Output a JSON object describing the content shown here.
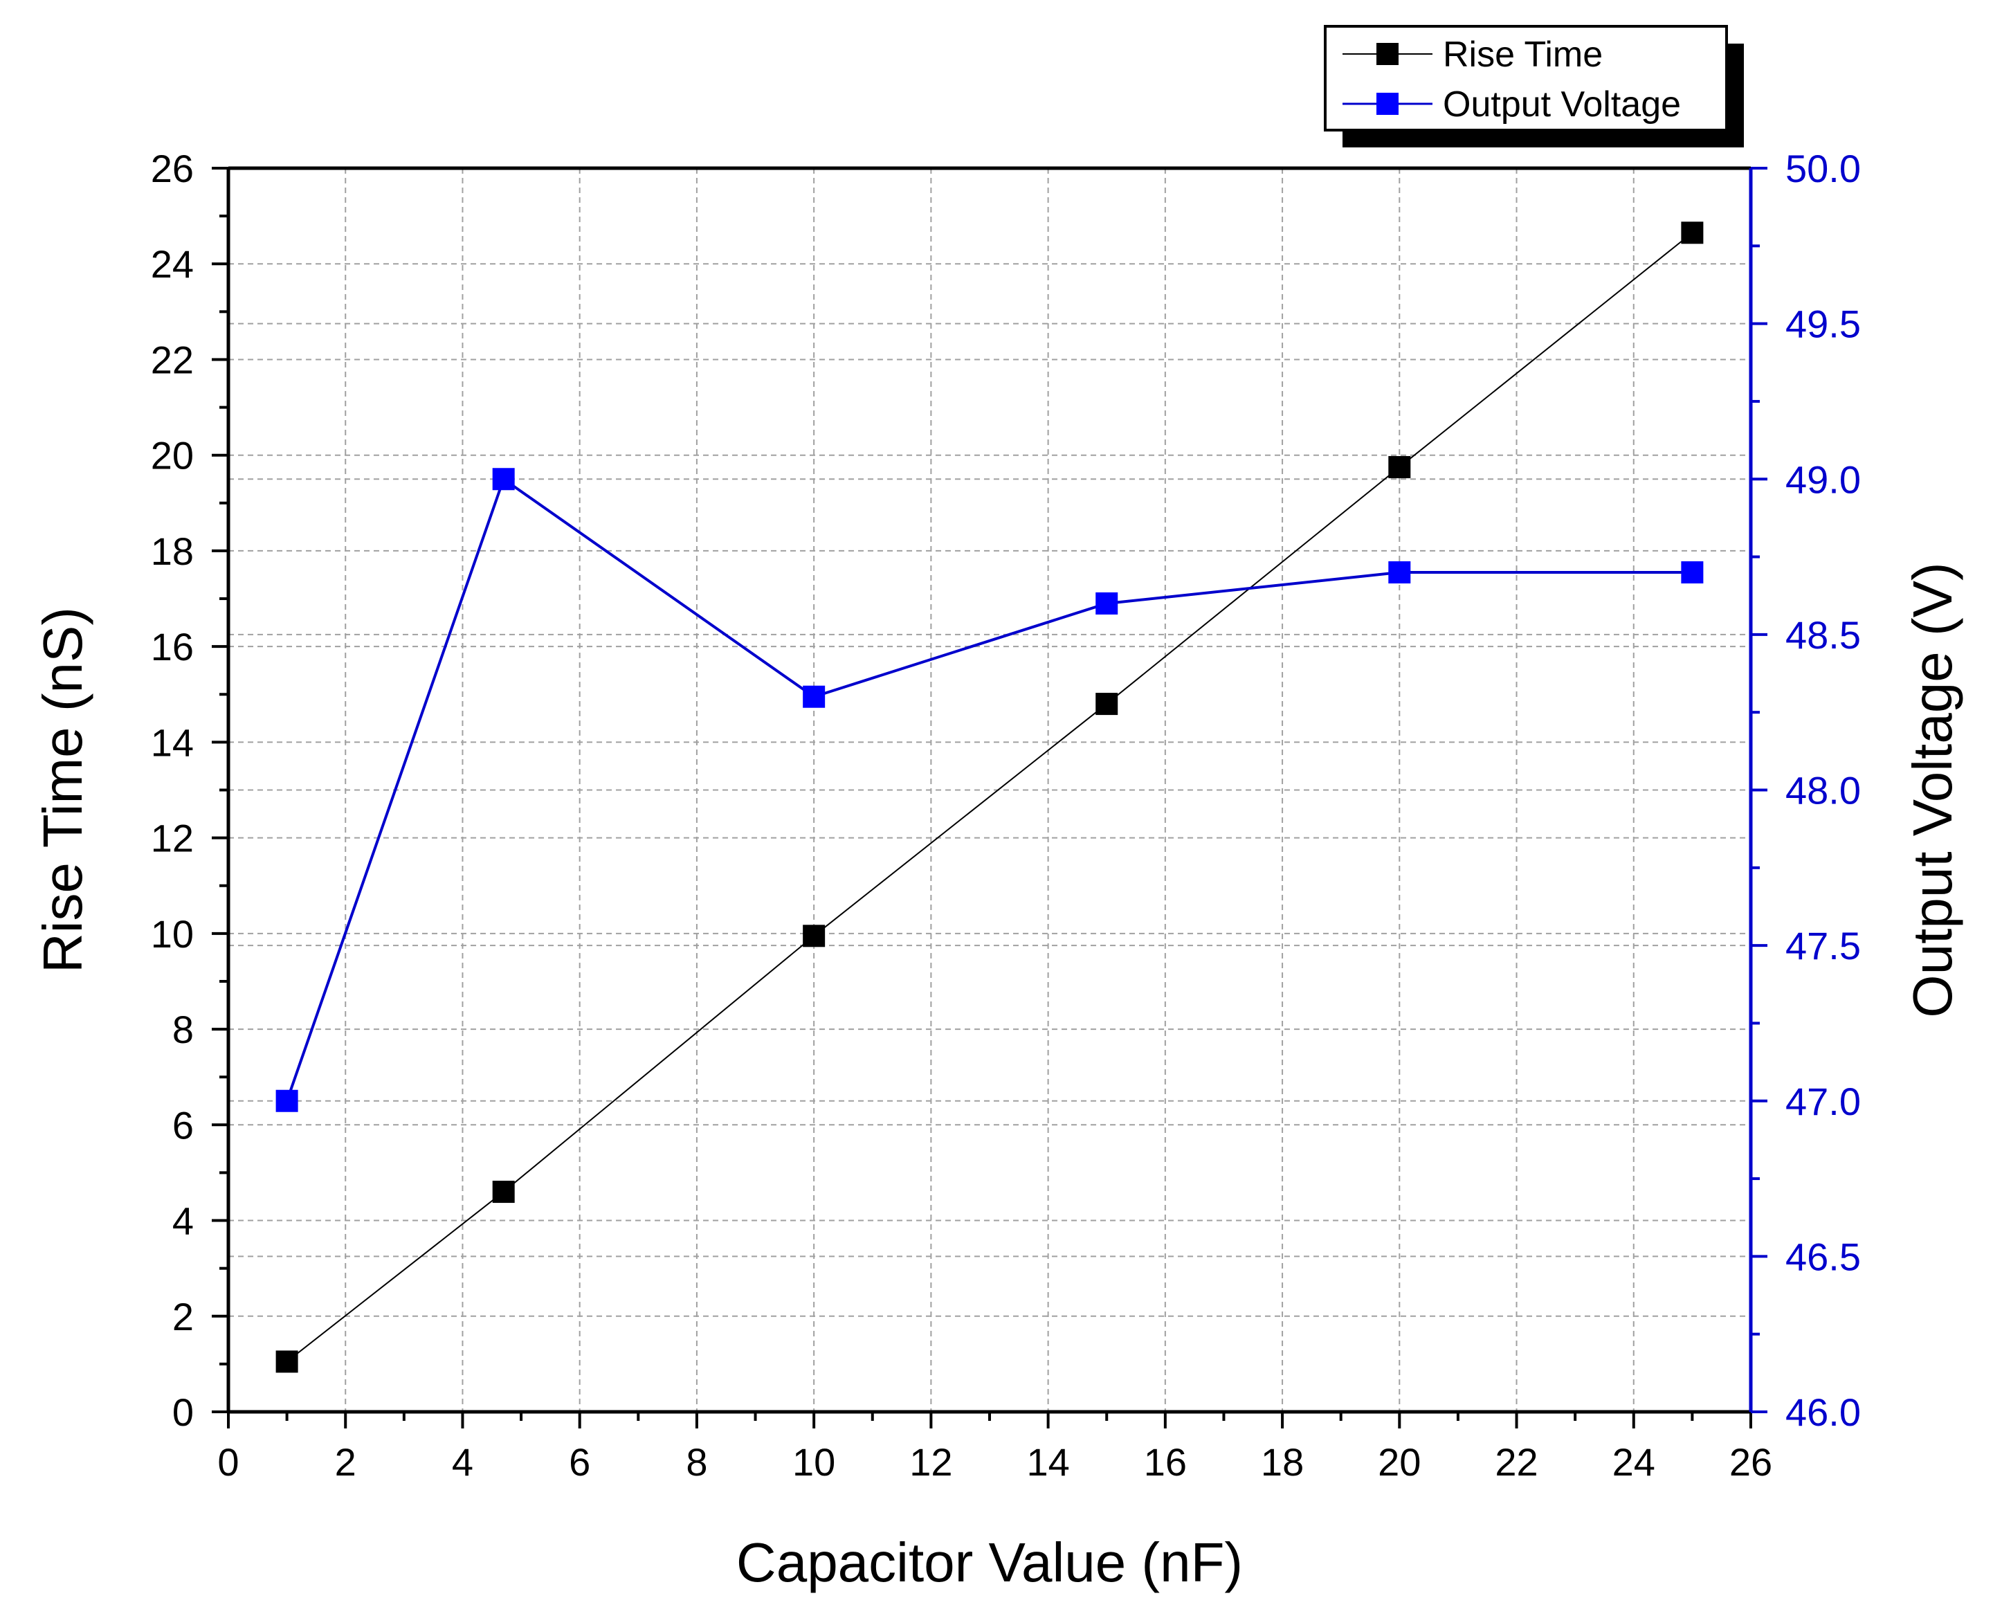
{
  "chart_data": {
    "type": "line",
    "title": "",
    "xlabel": "Capacitor Value (nF)",
    "ylabel": "Rise Time (nS)",
    "y2label": "Output Voltage (V)",
    "xlim": [
      0,
      26
    ],
    "ylim": [
      0,
      26
    ],
    "y2lim": [
      46.0,
      50.0
    ],
    "x_ticks": [
      "0",
      "2",
      "4",
      "6",
      "8",
      "10",
      "12",
      "14",
      "16",
      "18",
      "20",
      "22",
      "24",
      "26"
    ],
    "y_ticks": [
      "0",
      "2",
      "4",
      "6",
      "8",
      "10",
      "12",
      "14",
      "16",
      "18",
      "20",
      "22",
      "24",
      "26"
    ],
    "y2_ticks": [
      "46.0",
      "46.5",
      "47.0",
      "47.5",
      "48.0",
      "48.5",
      "49.0",
      "49.5",
      "50.0"
    ],
    "grid": true,
    "legend_position": "top-right",
    "colors": {
      "rise_time": "#000000",
      "output_voltage": "#0000cc",
      "marker_blue": "#0000ff",
      "grid": "#a0a0a0"
    },
    "series": [
      {
        "name": "Rise Time",
        "axis": "left",
        "x": [
          1,
          4.7,
          10,
          15,
          20,
          25
        ],
        "values": [
          1.05,
          4.6,
          9.95,
          14.8,
          19.75,
          24.65
        ]
      },
      {
        "name": "Output Voltage",
        "axis": "right",
        "x": [
          1,
          4.7,
          10,
          15,
          20,
          25
        ],
        "values": [
          47.0,
          49.0,
          48.3,
          48.6,
          48.7,
          48.7
        ]
      }
    ]
  }
}
